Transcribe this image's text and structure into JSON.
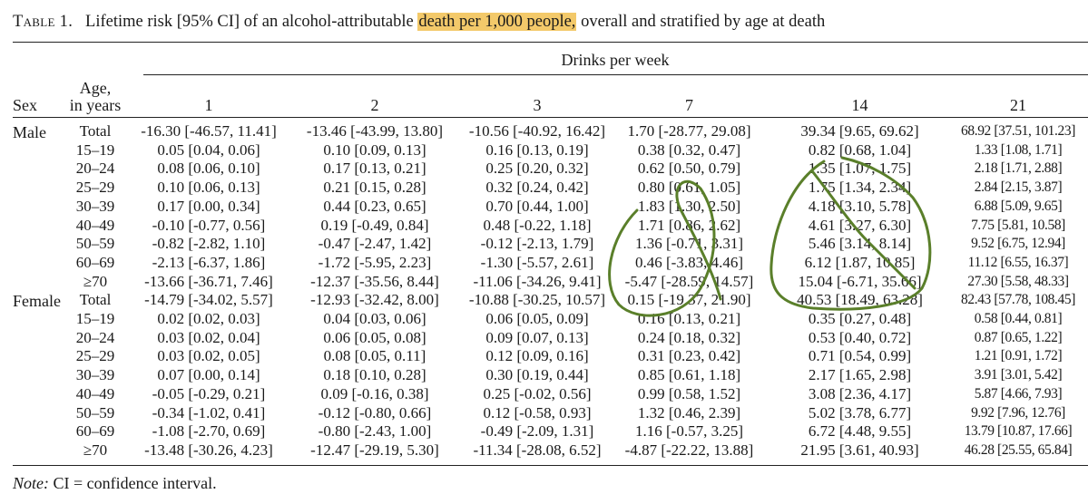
{
  "caption": {
    "label": "Table 1.",
    "before": "Lifetime risk [95% CI] of an alcohol-attributable ",
    "highlight": "death per 1,000 people,",
    "after": " overall and stratified by age at death"
  },
  "header": {
    "spanner": "Drinks per week",
    "sex": "Sex",
    "age_line1": "Age,",
    "age_line2": "in years",
    "drinks": [
      "1",
      "2",
      "3",
      "7",
      "14",
      "21"
    ]
  },
  "rows": [
    {
      "sex": "Male",
      "age": "Total",
      "c1": "-16.30 [-46.57, 11.41]",
      "c2": "-13.46 [-43.99, 13.80]",
      "c3": "-10.56 [-40.92, 16.42]",
      "c7": "1.70 [-28.77, 29.08]",
      "c14": "39.34 [9.65, 69.62]",
      "c21": "68.92 [37.51, 101.23]"
    },
    {
      "sex": "",
      "age": "15–19",
      "c1": "0.05 [0.04, 0.06]",
      "c2": "0.10 [0.09, 0.13]",
      "c3": "0.16 [0.13, 0.19]",
      "c7": "0.38 [0.32, 0.47]",
      "c14": "0.82 [0.68, 1.04]",
      "c21": "1.33 [1.08, 1.71]"
    },
    {
      "sex": "",
      "age": "20–24",
      "c1": "0.08 [0.06, 0.10]",
      "c2": "0.17 [0.13, 0.21]",
      "c3": "0.25 [0.20, 0.32]",
      "c7": "0.62 [0.50, 0.79]",
      "c14": "1.35 [1.07, 1.75]",
      "c21": "2.18 [1.71, 2.88]"
    },
    {
      "sex": "",
      "age": "25–29",
      "c1": "0.10 [0.06, 0.13]",
      "c2": "0.21 [0.15, 0.28]",
      "c3": "0.32 [0.24, 0.42]",
      "c7": "0.80 [0.61, 1.05]",
      "c14": "1.75 [1.34, 2.34]",
      "c21": "2.84 [2.15, 3.87]"
    },
    {
      "sex": "",
      "age": "30–39",
      "c1": "0.17 [0.00, 0.34]",
      "c2": "0.44 [0.23, 0.65]",
      "c3": "0.70 [0.44, 1.00]",
      "c7": "1.83 [1.30, 2.50]",
      "c14": "4.18 [3.10, 5.78]",
      "c21": "6.88 [5.09, 9.65]"
    },
    {
      "sex": "",
      "age": "40–49",
      "c1": "-0.10 [-0.77, 0.56]",
      "c2": "0.19 [-0.49, 0.84]",
      "c3": "0.48 [-0.22, 1.18]",
      "c7": "1.71 [0.86, 2.62]",
      "c14": "4.61 [3.27, 6.30]",
      "c21": "7.75 [5.81, 10.58]"
    },
    {
      "sex": "",
      "age": "50–59",
      "c1": "-0.82 [-2.82, 1.10]",
      "c2": "-0.47 [-2.47, 1.42]",
      "c3": "-0.12 [-2.13, 1.79]",
      "c7": "1.36 [-0.71, 3.31]",
      "c14": "5.46 [3.14, 8.14]",
      "c21": "9.52 [6.75, 12.94]"
    },
    {
      "sex": "",
      "age": "60–69",
      "c1": "-2.13 [-6.37, 1.86]",
      "c2": "-1.72 [-5.95, 2.23]",
      "c3": "-1.30 [-5.57, 2.61]",
      "c7": "0.46 [-3.83, 4.46]",
      "c14": "6.12 [1.87, 10.85]",
      "c21": "11.12 [6.55, 16.37]"
    },
    {
      "sex": "",
      "age": "≥70",
      "c1": "-13.66 [-36.71, 7.46]",
      "c2": "-12.37 [-35.56, 8.44]",
      "c3": "-11.06 [-34.26, 9.41]",
      "c7": "-5.47 [-28.59, 14.57]",
      "c14": "15.04 [-6.71, 35.66]",
      "c21": "27.30 [5.58, 48.33]"
    },
    {
      "sex": "Female",
      "age": "Total",
      "c1": "-14.79 [-34.02, 5.57]",
      "c2": "-12.93 [-32.42, 8.00]",
      "c3": "-10.88 [-30.25, 10.57]",
      "c7": "0.15 [-19.37, 21.90]",
      "c14": "40.53 [18.49, 63.28]",
      "c21": "82.43 [57.78, 108.45]"
    },
    {
      "sex": "",
      "age": "15–19",
      "c1": "0.02 [0.02, 0.03]",
      "c2": "0.04 [0.03, 0.06]",
      "c3": "0.06 [0.05, 0.09]",
      "c7": "0.16 [0.13, 0.21]",
      "c14": "0.35 [0.27, 0.48]",
      "c21": "0.58 [0.44, 0.81]"
    },
    {
      "sex": "",
      "age": "20–24",
      "c1": "0.03 [0.02, 0.04]",
      "c2": "0.06 [0.05, 0.08]",
      "c3": "0.09 [0.07, 0.13]",
      "c7": "0.24 [0.18, 0.32]",
      "c14": "0.53 [0.40, 0.72]",
      "c21": "0.87 [0.65, 1.22]"
    },
    {
      "sex": "",
      "age": "25–29",
      "c1": "0.03 [0.02, 0.05]",
      "c2": "0.08 [0.05, 0.11]",
      "c3": "0.12 [0.09, 0.16]",
      "c7": "0.31 [0.23, 0.42]",
      "c14": "0.71 [0.54, 0.99]",
      "c21": "1.21 [0.91, 1.72]"
    },
    {
      "sex": "",
      "age": "30–39",
      "c1": "0.07 [0.00, 0.14]",
      "c2": "0.18 [0.10, 0.28]",
      "c3": "0.30 [0.19, 0.44]",
      "c7": "0.85 [0.61, 1.18]",
      "c14": "2.17 [1.65, 2.98]",
      "c21": "3.91 [3.01, 5.42]"
    },
    {
      "sex": "",
      "age": "40–49",
      "c1": "-0.05 [-0.29, 0.21]",
      "c2": "0.09 [-0.16, 0.38]",
      "c3": "0.25 [-0.02, 0.56]",
      "c7": "0.99 [0.58, 1.52]",
      "c14": "3.08 [2.36, 4.17]",
      "c21": "5.87 [4.66, 7.93]"
    },
    {
      "sex": "",
      "age": "50–59",
      "c1": "-0.34 [-1.02, 0.41]",
      "c2": "-0.12 [-0.80, 0.66]",
      "c3": "0.12 [-0.58, 0.93]",
      "c7": "1.32 [0.46, 2.39]",
      "c14": "5.02 [3.78, 6.77]",
      "c21": "9.92 [7.96, 12.76]"
    },
    {
      "sex": "",
      "age": "60–69",
      "c1": "-1.08 [-2.70, 0.69]",
      "c2": "-0.80 [-2.43, 1.00]",
      "c3": "-0.49 [-2.09, 1.31]",
      "c7": "1.16 [-0.57, 3.25]",
      "c14": "6.72 [4.48, 9.55]",
      "c21": "13.79 [10.87, 17.66]"
    },
    {
      "sex": "",
      "age": "≥70",
      "c1": "-13.48 [-30.26, 4.23]",
      "c2": "-12.47 [-29.19, 5.30]",
      "c3": "-11.34 [-28.08, 6.52]",
      "c7": "-4.87 [-22.22, 13.88]",
      "c14": "21.95 [3.61, 40.93]",
      "c21": "46.28 [25.55, 65.84]"
    }
  ],
  "note": {
    "label": "Note:",
    "text": " CI = confidence interval."
  },
  "colors": {
    "highlight": "#f3c96a",
    "annotation_ink": "#5a7f2a"
  }
}
